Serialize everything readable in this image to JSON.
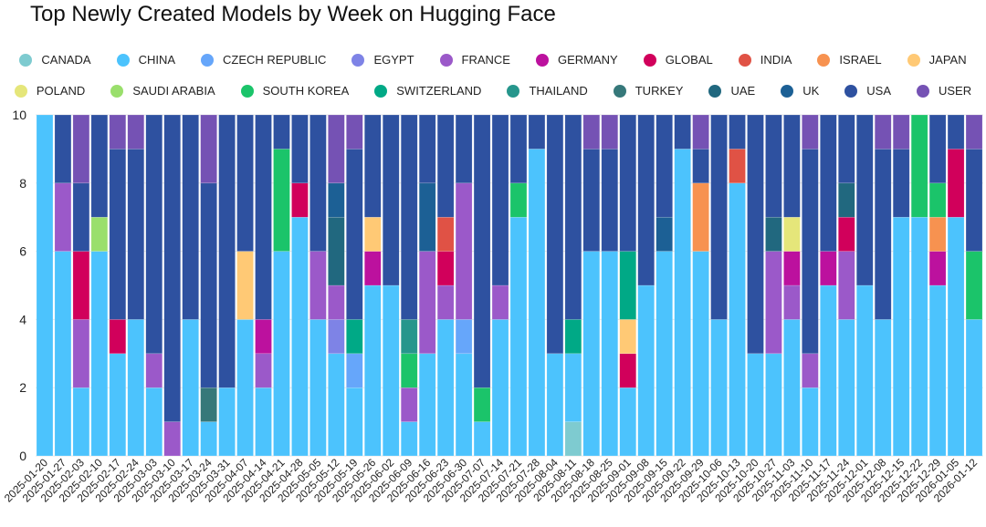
{
  "chart_data": {
    "type": "bar",
    "stacked": true,
    "title": "Top Newly Created Models by Week on Hugging Face",
    "xlabel": "",
    "ylabel": "",
    "ylim": [
      0,
      10
    ],
    "yticks": [
      0,
      2,
      4,
      6,
      8,
      10
    ],
    "grid": true,
    "legend_position": "top-center",
    "legend": [
      {
        "name": "CANADA",
        "color": "#7ECBD0"
      },
      {
        "name": "CHINA",
        "color": "#4CC3FD"
      },
      {
        "name": "CZECH REPUBLIC",
        "color": "#66A6FA"
      },
      {
        "name": "EGYPT",
        "color": "#7E83E6"
      },
      {
        "name": "FRANCE",
        "color": "#9B59C9"
      },
      {
        "name": "GERMANY",
        "color": "#BC119E"
      },
      {
        "name": "GLOBAL",
        "color": "#D1005B"
      },
      {
        "name": "INDIA",
        "color": "#E05245"
      },
      {
        "name": "ISRAEL",
        "color": "#F79250"
      },
      {
        "name": "JAPAN",
        "color": "#FFC975"
      },
      {
        "name": "POLAND",
        "color": "#E5E67A"
      },
      {
        "name": "SAUDI ARABIA",
        "color": "#9ADF6C"
      },
      {
        "name": "SOUTH KOREA",
        "color": "#1BC46A"
      },
      {
        "name": "SWITZERLAND",
        "color": "#00A986"
      },
      {
        "name": "THAILAND",
        "color": "#26968C"
      },
      {
        "name": "TURKEY",
        "color": "#36787A"
      },
      {
        "name": "UAE",
        "color": "#21687F"
      },
      {
        "name": "UK",
        "color": "#1C6095"
      },
      {
        "name": "USA",
        "color": "#2E51A0"
      },
      {
        "name": "USER",
        "color": "#7552B4"
      }
    ],
    "categories": [
      "2025-01-20",
      "2025-01-27",
      "2025-02-03",
      "2025-02-10",
      "2025-02-17",
      "2025-02-24",
      "2025-03-03",
      "2025-03-10",
      "2025-03-17",
      "2025-03-24",
      "2025-03-31",
      "2025-04-07",
      "2025-04-14",
      "2025-04-21",
      "2025-04-28",
      "2025-05-05",
      "2025-05-12",
      "2025-05-19",
      "2025-05-26",
      "2025-06-02",
      "2025-06-09",
      "2025-06-16",
      "2025-06-23",
      "2025-06-30",
      "2025-07-07",
      "2025-07-14",
      "2025-07-21",
      "2025-07-28",
      "2025-08-04",
      "2025-08-11",
      "2025-08-18",
      "2025-08-25",
      "2025-09-01",
      "2025-09-08",
      "2025-09-15",
      "2025-09-22",
      "2025-09-29",
      "2025-10-06",
      "2025-10-13",
      "2025-10-20",
      "2025-10-27",
      "2025-11-03",
      "2025-11-10",
      "2025-11-17",
      "2025-11-24",
      "2025-12-01",
      "2025-12-08",
      "2025-12-15",
      "2025-12-22",
      "2025-12-29",
      "2026-01-05",
      "2026-01-12"
    ],
    "series": [
      {
        "name": "CANADA",
        "values": [
          0,
          0,
          0,
          0,
          0,
          0,
          0,
          0,
          0,
          0,
          0,
          0,
          0,
          0,
          0,
          0,
          0,
          0,
          0,
          0,
          0,
          0,
          0,
          0,
          0,
          0,
          0,
          0,
          0,
          1,
          0,
          0,
          0,
          0,
          0,
          0,
          0,
          0,
          0,
          0,
          0,
          0,
          0,
          0,
          0,
          0,
          0,
          0,
          0,
          0,
          0,
          0
        ]
      },
      {
        "name": "CHINA",
        "values": [
          10,
          6,
          2,
          6,
          3,
          4,
          2,
          0,
          4,
          1,
          2,
          4,
          2,
          6,
          7,
          4,
          3,
          2,
          5,
          5,
          1,
          3,
          4,
          3,
          1,
          4,
          7,
          9,
          3,
          2,
          6,
          6,
          2,
          5,
          6,
          9,
          6,
          4,
          8,
          3,
          3,
          4,
          2,
          5,
          4,
          5,
          4,
          7,
          7,
          5,
          7,
          4
        ]
      },
      {
        "name": "CZECH REPUBLIC",
        "values": [
          0,
          0,
          0,
          0,
          0,
          0,
          0,
          0,
          0,
          0,
          0,
          0,
          0,
          0,
          0,
          0,
          0,
          1,
          0,
          0,
          0,
          0,
          0,
          1,
          0,
          0,
          0,
          0,
          0,
          0,
          0,
          0,
          0,
          0,
          0,
          0,
          0,
          0,
          0,
          0,
          0,
          0,
          0,
          0,
          0,
          0,
          0,
          0,
          0,
          0,
          0,
          0
        ]
      },
      {
        "name": "EGYPT",
        "values": [
          0,
          0,
          0,
          0,
          0,
          0,
          0,
          0,
          0,
          0,
          0,
          0,
          0,
          0,
          0,
          0,
          1,
          0,
          0,
          0,
          0,
          0,
          0,
          0,
          0,
          0,
          0,
          0,
          0,
          0,
          0,
          0,
          0,
          0,
          0,
          0,
          0,
          0,
          0,
          0,
          0,
          0,
          0,
          0,
          0,
          0,
          0,
          0,
          0,
          0,
          0,
          0
        ]
      },
      {
        "name": "FRANCE",
        "values": [
          0,
          2,
          2,
          0,
          0,
          0,
          1,
          1,
          0,
          0,
          0,
          0,
          1,
          0,
          0,
          2,
          1,
          0,
          0,
          0,
          1,
          3,
          1,
          4,
          0,
          1,
          0,
          0,
          0,
          0,
          0,
          0,
          0,
          0,
          0,
          0,
          0,
          0,
          0,
          0,
          3,
          1,
          1,
          0,
          2,
          0,
          0,
          0,
          0,
          0,
          0,
          0
        ]
      },
      {
        "name": "GERMANY",
        "values": [
          0,
          0,
          0,
          0,
          0,
          0,
          0,
          0,
          0,
          0,
          0,
          0,
          1,
          0,
          0,
          0,
          0,
          0,
          1,
          0,
          0,
          0,
          0,
          0,
          0,
          0,
          0,
          0,
          0,
          0,
          0,
          0,
          0,
          0,
          0,
          0,
          0,
          0,
          0,
          0,
          0,
          1,
          0,
          1,
          0,
          0,
          0,
          0,
          0,
          1,
          0,
          0
        ]
      },
      {
        "name": "GLOBAL",
        "values": [
          0,
          0,
          2,
          0,
          1,
          0,
          0,
          0,
          0,
          0,
          0,
          0,
          0,
          0,
          1,
          0,
          0,
          0,
          0,
          0,
          0,
          0,
          1,
          0,
          0,
          0,
          0,
          0,
          0,
          0,
          0,
          0,
          1,
          0,
          0,
          0,
          0,
          0,
          0,
          0,
          0,
          0,
          0,
          0,
          1,
          0,
          0,
          0,
          0,
          0,
          2,
          0
        ]
      },
      {
        "name": "INDIA",
        "values": [
          0,
          0,
          0,
          0,
          0,
          0,
          0,
          0,
          0,
          0,
          0,
          0,
          0,
          0,
          0,
          0,
          0,
          0,
          0,
          0,
          0,
          0,
          1,
          0,
          0,
          0,
          0,
          0,
          0,
          0,
          0,
          0,
          0,
          0,
          0,
          0,
          0,
          0,
          1,
          0,
          0,
          0,
          0,
          0,
          0,
          0,
          0,
          0,
          0,
          0,
          0,
          0
        ]
      },
      {
        "name": "ISRAEL",
        "values": [
          0,
          0,
          0,
          0,
          0,
          0,
          0,
          0,
          0,
          0,
          0,
          0,
          0,
          0,
          0,
          0,
          0,
          0,
          0,
          0,
          0,
          0,
          0,
          0,
          0,
          0,
          0,
          0,
          0,
          0,
          0,
          0,
          0,
          0,
          0,
          0,
          2,
          0,
          0,
          0,
          0,
          0,
          0,
          0,
          0,
          0,
          0,
          0,
          0,
          1,
          0,
          0
        ]
      },
      {
        "name": "JAPAN",
        "values": [
          0,
          0,
          0,
          0,
          0,
          0,
          0,
          0,
          0,
          0,
          0,
          2,
          0,
          0,
          0,
          0,
          0,
          0,
          1,
          0,
          0,
          0,
          0,
          0,
          0,
          0,
          0,
          0,
          0,
          0,
          0,
          0,
          1,
          0,
          0,
          0,
          0,
          0,
          0,
          0,
          0,
          0,
          0,
          0,
          0,
          0,
          0,
          0,
          0,
          0,
          0,
          0
        ]
      },
      {
        "name": "POLAND",
        "values": [
          0,
          0,
          0,
          0,
          0,
          0,
          0,
          0,
          0,
          0,
          0,
          0,
          0,
          0,
          0,
          0,
          0,
          0,
          0,
          0,
          0,
          0,
          0,
          0,
          0,
          0,
          0,
          0,
          0,
          0,
          0,
          0,
          0,
          0,
          0,
          0,
          0,
          0,
          0,
          0,
          0,
          1,
          0,
          0,
          0,
          0,
          0,
          0,
          0,
          0,
          0,
          0
        ]
      },
      {
        "name": "SAUDI ARABIA",
        "values": [
          0,
          0,
          0,
          1,
          0,
          0,
          0,
          0,
          0,
          0,
          0,
          0,
          0,
          0,
          0,
          0,
          0,
          0,
          0,
          0,
          0,
          0,
          0,
          0,
          0,
          0,
          0,
          0,
          0,
          0,
          0,
          0,
          0,
          0,
          0,
          0,
          0,
          0,
          0,
          0,
          0,
          0,
          0,
          0,
          0,
          0,
          0,
          0,
          0,
          0,
          0,
          0
        ]
      },
      {
        "name": "SOUTH KOREA",
        "values": [
          0,
          0,
          0,
          0,
          0,
          0,
          0,
          0,
          0,
          0,
          0,
          0,
          0,
          3,
          0,
          0,
          0,
          0,
          0,
          0,
          1,
          0,
          0,
          0,
          1,
          0,
          1,
          0,
          0,
          0,
          0,
          0,
          0,
          0,
          0,
          0,
          0,
          0,
          0,
          0,
          0,
          0,
          0,
          0,
          0,
          0,
          0,
          0,
          3,
          1,
          0,
          2
        ]
      },
      {
        "name": "SWITZERLAND",
        "values": [
          0,
          0,
          0,
          0,
          0,
          0,
          0,
          0,
          0,
          0,
          0,
          0,
          0,
          0,
          0,
          0,
          0,
          1,
          0,
          0,
          0,
          0,
          0,
          0,
          0,
          0,
          0,
          0,
          0,
          1,
          0,
          0,
          2,
          0,
          0,
          0,
          0,
          0,
          0,
          0,
          0,
          0,
          0,
          0,
          0,
          0,
          0,
          0,
          0,
          0,
          0,
          0
        ]
      },
      {
        "name": "THAILAND",
        "values": [
          0,
          0,
          0,
          0,
          0,
          0,
          0,
          0,
          0,
          0,
          0,
          0,
          0,
          0,
          0,
          0,
          0,
          0,
          0,
          0,
          1,
          0,
          0,
          0,
          0,
          0,
          0,
          0,
          0,
          0,
          0,
          0,
          0,
          0,
          0,
          0,
          0,
          0,
          0,
          0,
          0,
          0,
          0,
          0,
          0,
          0,
          0,
          0,
          0,
          0,
          0,
          0
        ]
      },
      {
        "name": "TURKEY",
        "values": [
          0,
          0,
          0,
          0,
          0,
          0,
          0,
          0,
          0,
          1,
          0,
          0,
          0,
          0,
          0,
          0,
          0,
          0,
          0,
          0,
          0,
          0,
          0,
          0,
          0,
          0,
          0,
          0,
          0,
          0,
          0,
          0,
          0,
          0,
          0,
          0,
          0,
          0,
          0,
          0,
          0,
          0,
          0,
          0,
          0,
          0,
          0,
          0,
          0,
          0,
          0,
          0
        ]
      },
      {
        "name": "UAE",
        "values": [
          0,
          0,
          0,
          0,
          0,
          0,
          0,
          0,
          0,
          0,
          0,
          0,
          0,
          0,
          0,
          0,
          2,
          0,
          0,
          0,
          0,
          0,
          0,
          0,
          0,
          0,
          0,
          0,
          0,
          0,
          0,
          0,
          0,
          0,
          0,
          0,
          0,
          0,
          0,
          0,
          1,
          0,
          0,
          0,
          1,
          0,
          0,
          0,
          0,
          0,
          0,
          0
        ]
      },
      {
        "name": "UK",
        "values": [
          0,
          0,
          0,
          0,
          0,
          0,
          0,
          0,
          0,
          0,
          0,
          0,
          0,
          0,
          0,
          0,
          1,
          0,
          0,
          0,
          0,
          2,
          0,
          0,
          0,
          0,
          0,
          0,
          0,
          0,
          0,
          0,
          0,
          0,
          1,
          0,
          0,
          0,
          0,
          0,
          0,
          0,
          0,
          0,
          0,
          0,
          0,
          0,
          0,
          0,
          0,
          0
        ]
      },
      {
        "name": "USA",
        "values": [
          0,
          2,
          2,
          3,
          5,
          5,
          7,
          9,
          6,
          6,
          8,
          4,
          6,
          1,
          2,
          4,
          0,
          5,
          3,
          5,
          6,
          2,
          3,
          2,
          8,
          5,
          2,
          1,
          7,
          6,
          3,
          3,
          4,
          5,
          3,
          1,
          1,
          6,
          1,
          7,
          3,
          3,
          6,
          4,
          2,
          5,
          5,
          2,
          0,
          2,
          1,
          3
        ]
      },
      {
        "name": "USER",
        "values": [
          0,
          0,
          2,
          0,
          1,
          1,
          0,
          0,
          0,
          2,
          0,
          0,
          0,
          0,
          0,
          0,
          2,
          1,
          0,
          0,
          0,
          0,
          0,
          0,
          0,
          0,
          0,
          0,
          0,
          0,
          1,
          1,
          0,
          0,
          0,
          0,
          1,
          0,
          0,
          0,
          0,
          0,
          1,
          0,
          0,
          0,
          1,
          1,
          0,
          0,
          0,
          1
        ]
      }
    ]
  }
}
